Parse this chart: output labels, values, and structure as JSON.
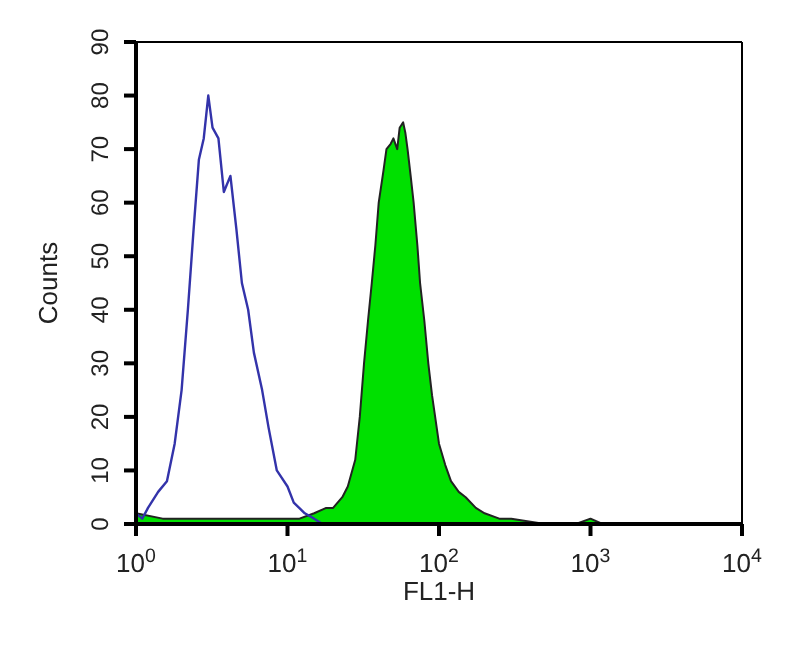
{
  "chart_data": {
    "type": "line",
    "xlabel": "FL1-H",
    "ylabel": "Counts",
    "log": "x",
    "xlim": [
      1,
      10000
    ],
    "xticks": [
      {
        "value": 1,
        "label": "10$^{0}$"
      },
      {
        "value": 10,
        "label": "10$^{1}$"
      },
      {
        "value": 100,
        "label": "10$^{2}$"
      },
      {
        "value": 1000,
        "label": "10$^{3}$"
      },
      {
        "value": 10000,
        "label": "10$^{4}$"
      }
    ],
    "ylim": [
      0,
      90
    ],
    "yticks": [
      0,
      10,
      20,
      30,
      40,
      50,
      60,
      70,
      80,
      90
    ],
    "marker": "none",
    "line_style": "solid",
    "series": [
      {
        "type": "area",
        "color": "#00e000",
        "x": [
          1,
          1.5,
          2,
          3,
          5,
          8,
          12,
          15,
          18,
          20,
          23,
          25,
          28,
          30,
          32,
          34,
          36,
          38,
          40,
          43,
          45,
          48,
          50,
          53,
          55,
          58,
          60,
          62,
          65,
          68,
          72,
          75,
          80,
          85,
          90,
          100,
          110,
          120,
          135,
          150,
          175,
          200,
          250,
          300,
          500,
          800,
          1000,
          1200,
          2000,
          5000,
          10000
        ],
        "values": [
          2,
          1,
          1,
          1,
          1,
          1,
          1,
          2,
          3,
          3,
          5,
          7,
          12,
          20,
          30,
          38,
          45,
          52,
          60,
          66,
          70,
          71,
          72,
          70,
          74,
          75,
          73,
          70,
          65,
          60,
          52,
          45,
          38,
          30,
          24,
          15,
          11,
          8,
          6,
          5,
          3,
          2,
          1,
          1,
          0,
          0,
          1,
          0,
          0,
          0,
          0
        ]
      },
      {
        "color": "#3333aa",
        "x": [
          1,
          1.1,
          1.2,
          1.4,
          1.6,
          1.8,
          2,
          2.2,
          2.4,
          2.6,
          2.8,
          3,
          3.2,
          3.5,
          3.8,
          4.2,
          4.6,
          5,
          5.5,
          6,
          6.8,
          7.5,
          8.5,
          10,
          11,
          13,
          15,
          17
        ],
        "values": [
          2,
          1,
          3,
          6,
          8,
          15,
          25,
          40,
          55,
          68,
          72,
          80,
          74,
          72,
          62,
          65,
          55,
          45,
          40,
          32,
          25,
          18,
          10,
          7,
          4,
          2,
          1,
          0
        ]
      }
    ]
  }
}
